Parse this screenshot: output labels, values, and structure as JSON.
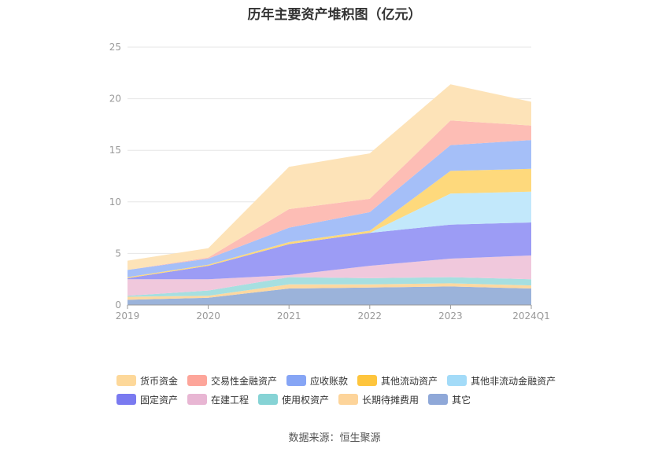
{
  "title": "历年主要资产堆积图（亿元）",
  "source": "数据来源：恒生聚源",
  "chart_data": {
    "type": "area",
    "stacked": true,
    "title": "历年主要资产堆积图（亿元）",
    "x": [
      "2019",
      "2020",
      "2021",
      "2022",
      "2023",
      "2024Q1"
    ],
    "ylim": [
      0,
      25
    ],
    "yticks": [
      0,
      5,
      10,
      15,
      20,
      25
    ],
    "grid": true,
    "legend_position": "bottom",
    "series": [
      {
        "name": "其它",
        "color": "#9bb3da",
        "values": [
          0.5,
          0.7,
          1.6,
          1.7,
          1.8,
          1.6
        ]
      },
      {
        "name": "长期待摊费用",
        "color": "#fdd8a0",
        "values": [
          0.3,
          0.2,
          0.4,
          0.3,
          0.3,
          0.3
        ]
      },
      {
        "name": "使用权资产",
        "color": "#a6dfe0",
        "values": [
          0.1,
          0.5,
          0.7,
          0.6,
          0.6,
          0.6
        ]
      },
      {
        "name": "在建工程",
        "color": "#f0c8dc",
        "values": [
          1.6,
          1.1,
          0.2,
          1.2,
          1.8,
          2.3
        ]
      },
      {
        "name": "固定资产",
        "color": "#9c9cf5",
        "values": [
          0.1,
          1.3,
          3.0,
          3.2,
          3.3,
          3.2
        ]
      },
      {
        "name": "其他非流动金融资产",
        "color": "#c2e8fb",
        "values": [
          0.0,
          0.0,
          0.0,
          0.0,
          3.0,
          3.0
        ]
      },
      {
        "name": "其他流动资产",
        "color": "#fed97c",
        "values": [
          0.1,
          0.1,
          0.2,
          0.2,
          2.2,
          2.2
        ]
      },
      {
        "name": "应收账款",
        "color": "#a5bff8",
        "values": [
          0.7,
          0.6,
          1.4,
          1.8,
          2.5,
          2.8
        ]
      },
      {
        "name": "交易性金融资产",
        "color": "#fdbdb5",
        "values": [
          0.0,
          0.1,
          1.8,
          1.3,
          2.4,
          1.4
        ]
      },
      {
        "name": "货币资金",
        "color": "#fde3b8",
        "values": [
          0.9,
          0.9,
          4.1,
          4.4,
          3.5,
          2.3
        ]
      }
    ]
  },
  "legend": {
    "rows": [
      [
        {
          "label": "货币资金",
          "color": "#fdd89a"
        },
        {
          "label": "交易性金融资产",
          "color": "#fda59a"
        },
        {
          "label": "应收账款",
          "color": "#86a5f5"
        },
        {
          "label": "其他流动资产",
          "color": "#fec53d"
        },
        {
          "label": "其他非流动金融资产",
          "color": "#a3dbf8"
        }
      ],
      [
        {
          "label": "固定资产",
          "color": "#7a7af0"
        },
        {
          "label": "在建工程",
          "color": "#e8b6d3"
        },
        {
          "label": "使用权资产",
          "color": "#86d3d5"
        },
        {
          "label": "长期待摊费用",
          "color": "#fdd49a"
        },
        {
          "label": "其它",
          "color": "#8fa8d8"
        }
      ]
    ]
  }
}
